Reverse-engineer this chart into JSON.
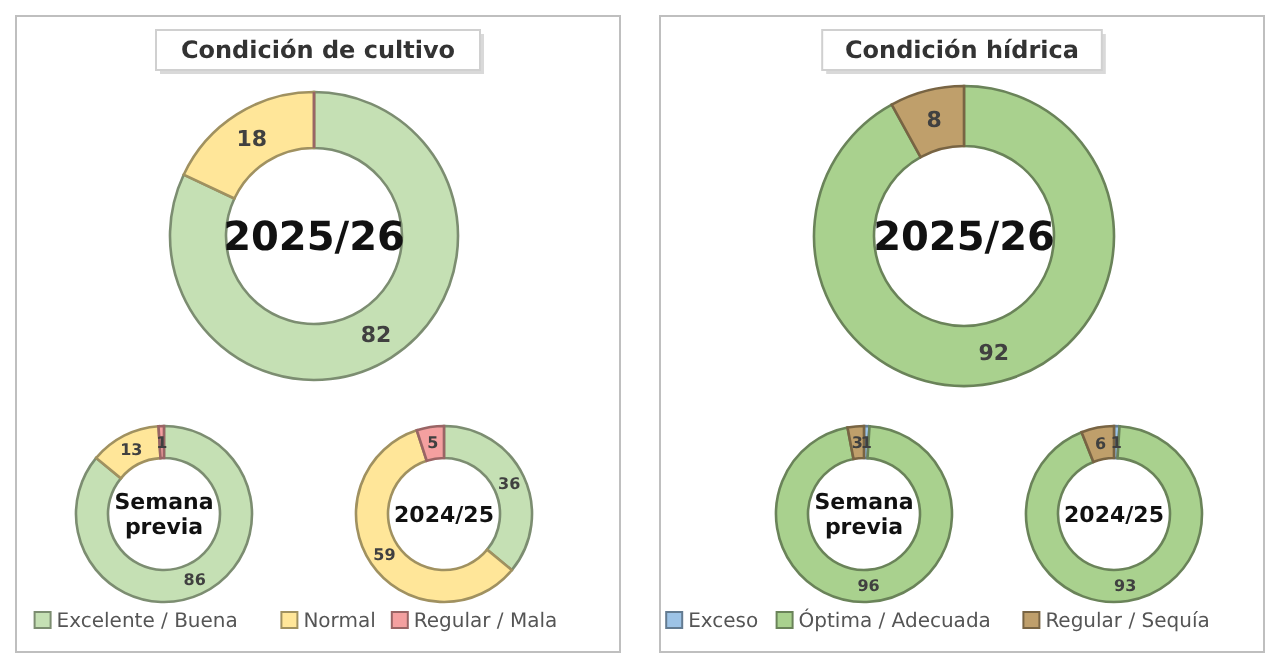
{
  "chart_data": [
    {
      "type": "donut",
      "title": "Condición de cultivo",
      "annotations": [
        "2025/26"
      ],
      "categories": [
        "Excelente / Buena",
        "Normal",
        "Regular / Mala"
      ],
      "values": [
        82,
        18,
        0
      ],
      "colors": [
        "#c5e0b4",
        "#ffe699",
        "#f4a0a0"
      ],
      "value_labels": [
        "82",
        "18",
        null
      ],
      "legend": "bottom"
    },
    {
      "type": "donut",
      "annotations": [
        "Semana previa"
      ],
      "values": [
        86,
        13,
        1
      ],
      "colors": [
        "#c5e0b4",
        "#ffe699",
        "#f4a0a0"
      ],
      "value_labels": [
        "86",
        "13",
        "1"
      ]
    },
    {
      "type": "donut",
      "annotations": [
        "2024/25"
      ],
      "values": [
        36,
        59,
        5
      ],
      "colors": [
        "#c5e0b4",
        "#ffe699",
        "#f4a0a0"
      ],
      "value_labels": [
        "36",
        "59",
        "5"
      ]
    },
    {
      "type": "donut",
      "title": "Condición hídrica",
      "annotations": [
        "2025/26"
      ],
      "categories": [
        "Exceso",
        "Óptima / Adecuada",
        "Regular / Sequía"
      ],
      "values": [
        0,
        92,
        8
      ],
      "colors": [
        "#9dc3e6",
        "#a9d18e",
        "#bf9f6b"
      ],
      "value_labels": [
        null,
        "92",
        "8"
      ],
      "legend": "bottom"
    },
    {
      "type": "donut",
      "annotations": [
        "Semana previa"
      ],
      "values": [
        1,
        96,
        3
      ],
      "colors": [
        "#9dc3e6",
        "#a9d18e",
        "#bf9f6b"
      ],
      "value_labels": [
        "1",
        "96",
        "3"
      ]
    },
    {
      "type": "donut",
      "annotations": [
        "2024/25"
      ],
      "values": [
        1,
        93,
        6
      ],
      "colors": [
        "#9dc3e6",
        "#a9d18e",
        "#bf9f6b"
      ],
      "value_labels": [
        "1",
        "93",
        "6"
      ]
    }
  ]
}
